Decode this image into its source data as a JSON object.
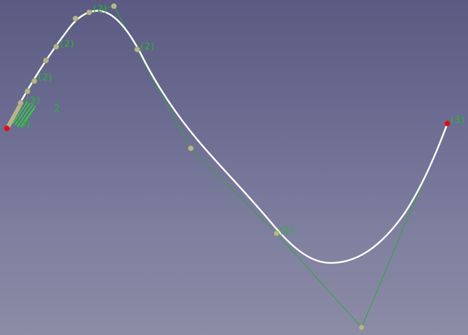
{
  "viewer": {
    "background_top": "#5a5a82",
    "background_bottom": "#8c8ca7"
  },
  "colors": {
    "curve": "#ffffff",
    "control_polygon": "#2ea83a",
    "pole": "#b8b48c",
    "endpoint": "#e01010",
    "label": "#1fbf2a"
  },
  "sketch": {
    "multiplicity_labels": [
      {
        "id": "label-near-top-peak",
        "text": "(2)"
      },
      {
        "id": "label-upper-right-of-peak",
        "text": "(2)"
      },
      {
        "id": "label-left-upper",
        "text": "(2)"
      },
      {
        "id": "label-left-middle",
        "text": "(2)"
      },
      {
        "id": "label-left-cluster",
        "text": "(3)"
      },
      {
        "id": "label-curve-middle",
        "text": "(2)"
      },
      {
        "id": "label-right-end",
        "text": "(3)"
      }
    ],
    "stray_label": "2",
    "cluster_labels": [
      "(2)",
      "(2)",
      "(2)",
      "(2)",
      "(2)",
      "(3)"
    ]
  }
}
